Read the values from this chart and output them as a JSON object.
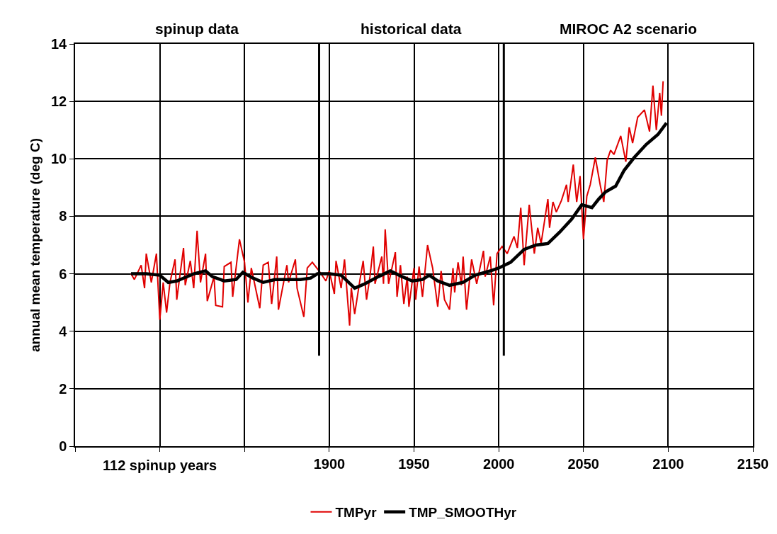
{
  "chart_data": {
    "type": "line",
    "ylabel": "annual mean temperature (deg C)",
    "xlabel": "112 spinup years",
    "xlim": [
      1750,
      2150
    ],
    "xticks": [
      {
        "value": 1750,
        "label": null
      },
      {
        "value": 1800,
        "label": null
      },
      {
        "value": 1850,
        "label": null
      },
      1900,
      1950,
      2000,
      2050,
      2100,
      2150
    ],
    "ylim": [
      0,
      14
    ],
    "yticks": [
      0,
      2,
      4,
      6,
      8,
      10,
      12,
      14
    ],
    "grid": true,
    "legend": "bottom",
    "marker": "none",
    "line_style": "solid",
    "ref_lines": [
      {
        "axis": "x",
        "value": 1894,
        "color": "#000000"
      },
      {
        "axis": "x",
        "value": 2003,
        "color": "#000000"
      }
    ],
    "annotations": [
      "spinup data",
      "historical data",
      "MIROC A2 scenario"
    ],
    "series": [
      {
        "name": "TMPyr",
        "color": "#e00000",
        "x": [
          1783,
          1785,
          1789,
          1791,
          1792,
          1795,
          1798,
          1800,
          1802,
          1804,
          1806,
          1809,
          1810,
          1814,
          1815,
          1818,
          1820,
          1822,
          1824,
          1827,
          1828,
          1832,
          1833,
          1837,
          1838,
          1842,
          1843,
          1847,
          1850,
          1852,
          1854,
          1859,
          1861,
          1864,
          1866,
          1869,
          1870,
          1875,
          1876,
          1880,
          1881,
          1885,
          1887,
          1890,
          1894,
          1898,
          1900,
          1903,
          1904,
          1907,
          1909,
          1912,
          1913,
          1915,
          1918,
          1920,
          1922,
          1924,
          1926,
          1927,
          1931,
          1932,
          1933,
          1935,
          1939,
          1940,
          1942,
          1944,
          1946,
          1947,
          1950,
          1951,
          1953,
          1955,
          1958,
          1961,
          1964,
          1966,
          1968,
          1971,
          1973,
          1974,
          1976,
          1978,
          1979,
          1981,
          1984,
          1987,
          1991,
          1992,
          1995,
          1997,
          1999,
          2002,
          2005,
          2009,
          2011,
          2013,
          2015,
          2018,
          2021,
          2023,
          2025,
          2029,
          2030,
          2032,
          2034,
          2037,
          2040,
          2041,
          2044,
          2046,
          2048,
          2050,
          2052,
          2054,
          2057,
          2060,
          2062,
          2064,
          2066,
          2068,
          2072,
          2075,
          2077,
          2079,
          2082,
          2086,
          2089,
          2091,
          2093,
          2095,
          2096,
          2097
        ],
        "values": [
          6.0,
          5.8,
          6.3,
          5.5,
          6.7,
          5.7,
          6.7,
          4.4,
          5.7,
          4.65,
          5.7,
          6.5,
          5.1,
          6.9,
          5.6,
          6.45,
          5.5,
          7.5,
          5.7,
          6.7,
          5.05,
          5.9,
          4.9,
          4.85,
          6.25,
          6.4,
          5.2,
          7.2,
          6.4,
          5.0,
          6.2,
          4.8,
          6.3,
          6.4,
          4.95,
          6.6,
          4.75,
          6.3,
          5.7,
          6.5,
          5.5,
          4.5,
          6.2,
          6.4,
          6.1,
          5.75,
          6.1,
          5.3,
          6.45,
          5.5,
          6.5,
          4.2,
          5.5,
          4.6,
          5.75,
          6.45,
          5.1,
          5.9,
          6.95,
          5.65,
          6.6,
          5.65,
          7.55,
          5.65,
          6.75,
          5.2,
          6.3,
          4.95,
          5.9,
          4.85,
          6.2,
          5.1,
          6.25,
          5.2,
          7.0,
          6.2,
          4.85,
          6.1,
          5.1,
          4.75,
          6.2,
          5.35,
          6.4,
          5.6,
          6.6,
          4.75,
          6.5,
          5.65,
          6.8,
          5.9,
          6.6,
          4.9,
          6.7,
          6.95,
          6.7,
          7.3,
          6.9,
          8.3,
          6.3,
          8.4,
          6.7,
          7.6,
          7.05,
          8.6,
          7.6,
          8.5,
          8.15,
          8.55,
          9.1,
          8.5,
          9.8,
          8.5,
          9.4,
          7.2,
          8.7,
          9.1,
          10.05,
          9.05,
          8.5,
          9.95,
          10.3,
          10.15,
          10.8,
          9.9,
          11.1,
          10.55,
          11.45,
          11.7,
          10.95,
          12.55,
          11.0,
          12.3,
          11.5,
          12.7
        ]
      },
      {
        "name": "TMP_SMOOTHyr",
        "color": "#000000",
        "x": [
          1783,
          1792,
          1800,
          1805,
          1810,
          1820,
          1827,
          1831,
          1838,
          1845,
          1849,
          1855,
          1861,
          1868,
          1875,
          1883,
          1889,
          1893,
          1900,
          1907,
          1915,
          1921,
          1929,
          1936,
          1943,
          1949,
          1955,
          1959,
          1964,
          1971,
          1979,
          1986,
          1995,
          2000,
          2007,
          2015,
          2022,
          2029,
          2036,
          2043,
          2049,
          2055,
          2059,
          2063,
          2069,
          2074,
          2080,
          2087,
          2094,
          2099
        ],
        "values": [
          6.0,
          6.0,
          5.95,
          5.7,
          5.75,
          6.0,
          6.1,
          5.9,
          5.75,
          5.8,
          6.05,
          5.85,
          5.7,
          5.8,
          5.8,
          5.8,
          5.85,
          6.0,
          6.0,
          5.95,
          5.5,
          5.65,
          5.9,
          6.1,
          5.9,
          5.75,
          5.8,
          5.95,
          5.75,
          5.6,
          5.7,
          5.95,
          6.1,
          6.2,
          6.4,
          6.85,
          7.0,
          7.05,
          7.45,
          7.9,
          8.4,
          8.3,
          8.6,
          8.85,
          9.05,
          9.6,
          10.05,
          10.5,
          10.85,
          11.25
        ]
      }
    ]
  }
}
